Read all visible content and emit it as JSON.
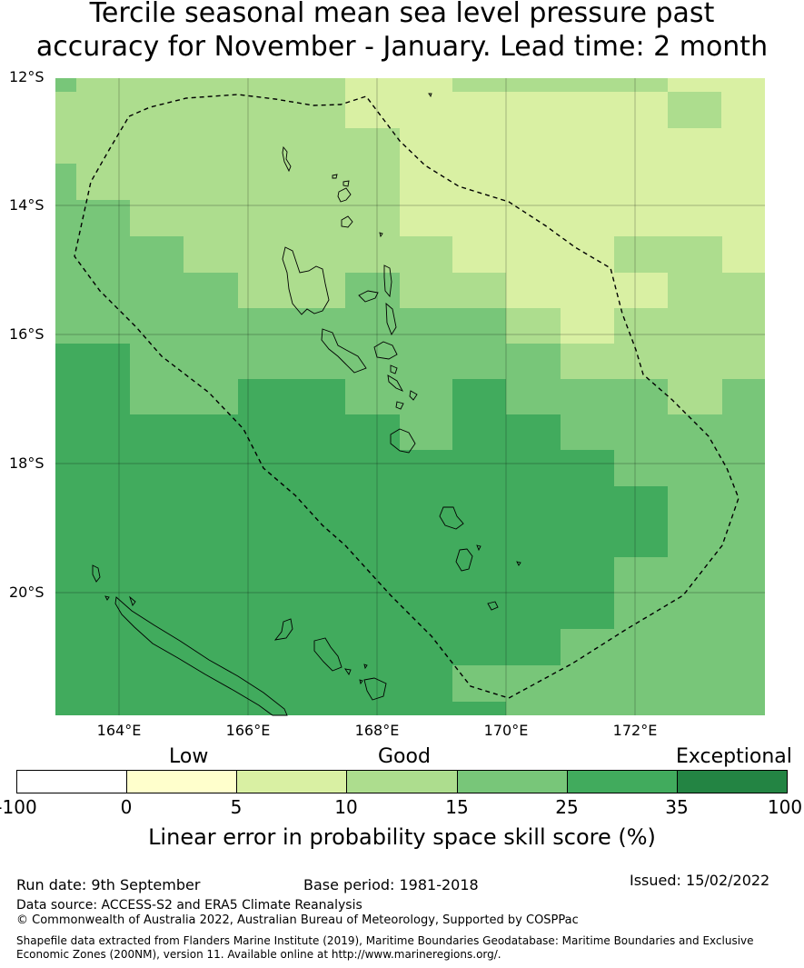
{
  "title_line1": "Tercile seasonal mean sea level pressure past",
  "title_line2": "accuracy for November - January. Lead time: 2 month",
  "map": {
    "lat_labels": [
      "12°S",
      "14°S",
      "16°S",
      "18°S",
      "20°S"
    ],
    "lon_labels": [
      "164°E",
      "166°E",
      "168°E",
      "170°E",
      "172°E"
    ],
    "extent": {
      "lon_min": 162.9,
      "lon_max": 173.9,
      "lat_min": -21.9,
      "lat_max": -12.0
    },
    "colors": {
      "cat_15_25": "#78c679",
      "cat_25_35": "#41ab5d",
      "cat_10_15": "#addd8e",
      "cat_5_10": "#d9f0a3",
      "border": "#000000",
      "grid": "#000000"
    },
    "boundary_style": "dashed",
    "region": "Vanuatu exclusive economic zone"
  },
  "legend": {
    "categories": [
      "Low",
      "Good",
      "Exceptional"
    ],
    "ticks": [
      "-100",
      "0",
      "5",
      "10",
      "15",
      "25",
      "35",
      "100"
    ],
    "colors": [
      "#ffffff",
      "#ffffcc",
      "#d9f0a3",
      "#addd8e",
      "#78c679",
      "#41ab5d",
      "#238443"
    ],
    "title": "Linear error in probability space skill score (%)"
  },
  "footer": {
    "run_date": "Run date: 9th September",
    "base_period": "Base period: 1981-2018",
    "issued": "Issued: 15/02/2022",
    "data_source": "Data source: ACCESS-S2 and ERA5 Climate Reanalysis",
    "copyright": "© Commonwealth of Australia 2022, Australian Bureau of Meteorology, Supported by COSPPac",
    "shapefile_line1": "Shapefile data extracted from Flanders Marine Institute (2019), Maritime Boundaries Geodatabase: Maritime Boundaries and Exclusive",
    "shapefile_line2": "Economic Zones (200NM), version 11. Available online at http://www.marineregions.org/."
  }
}
